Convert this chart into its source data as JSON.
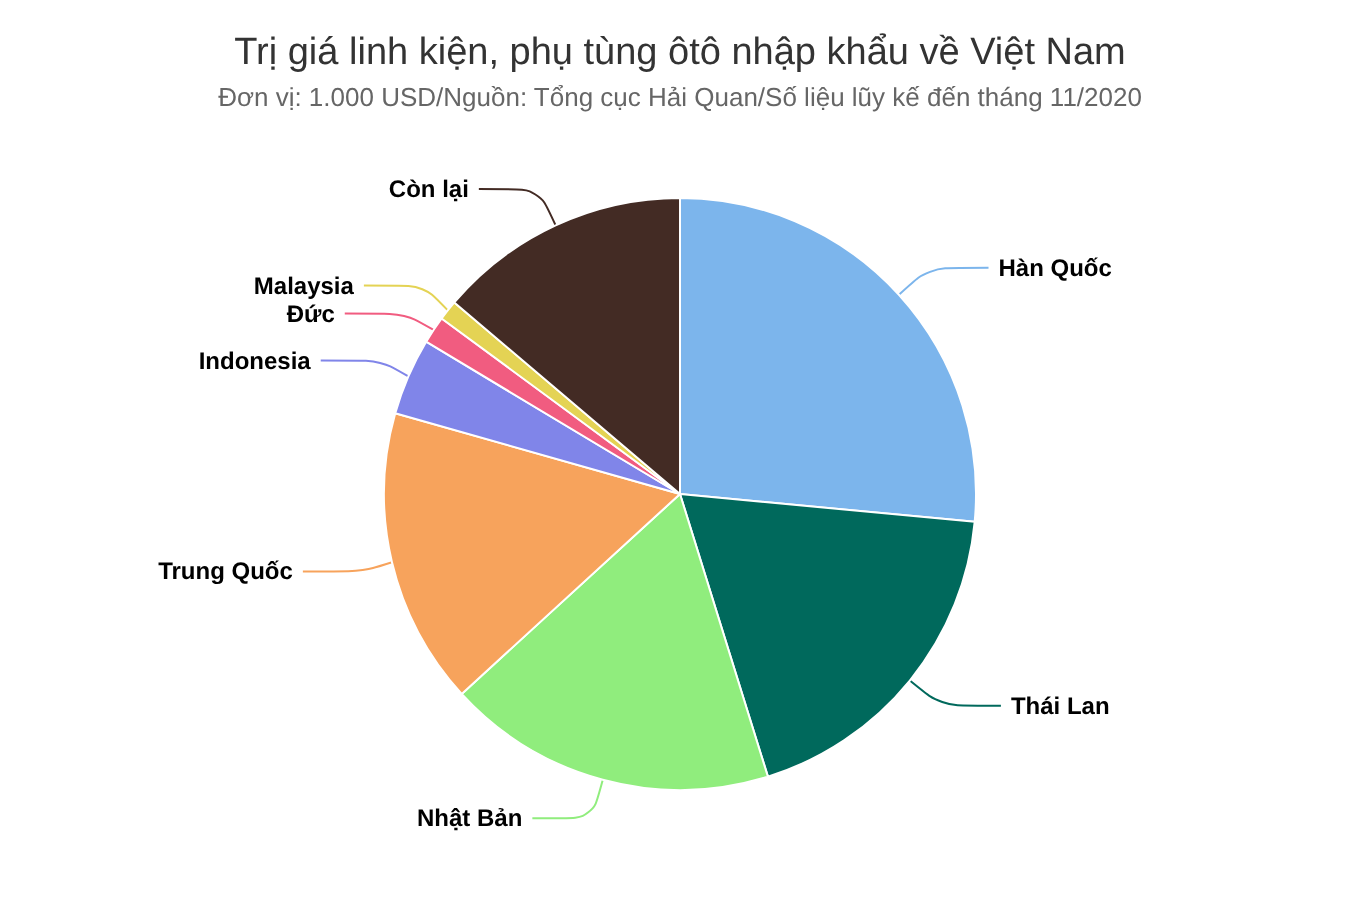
{
  "chart_data": {
    "type": "pie",
    "title": "Trị giá linh kiện, phụ tùng ôtô nhập khẩu về Việt Nam",
    "subtitle": "Đơn vị: 1.000 USD/Nguồn: Tổng cục Hải Quan/Số liệu lũy kế đến tháng 11/2020",
    "categories": [
      "Hàn Quốc",
      "Thái Lan",
      "Nhật Bản",
      "Trung Quốc",
      "Indonesia",
      "Đức",
      "Malaysia",
      "Còn lại"
    ],
    "values": [
      26.5,
      18.7,
      18.0,
      16.2,
      4.2,
      1.5,
      1.1,
      13.8
    ],
    "colors": [
      "#7cb5ec",
      "#00695c",
      "#90ed7d",
      "#f7a35c",
      "#8085e9",
      "#f15c80",
      "#e4d354",
      "#432b24"
    ],
    "legend": false
  }
}
